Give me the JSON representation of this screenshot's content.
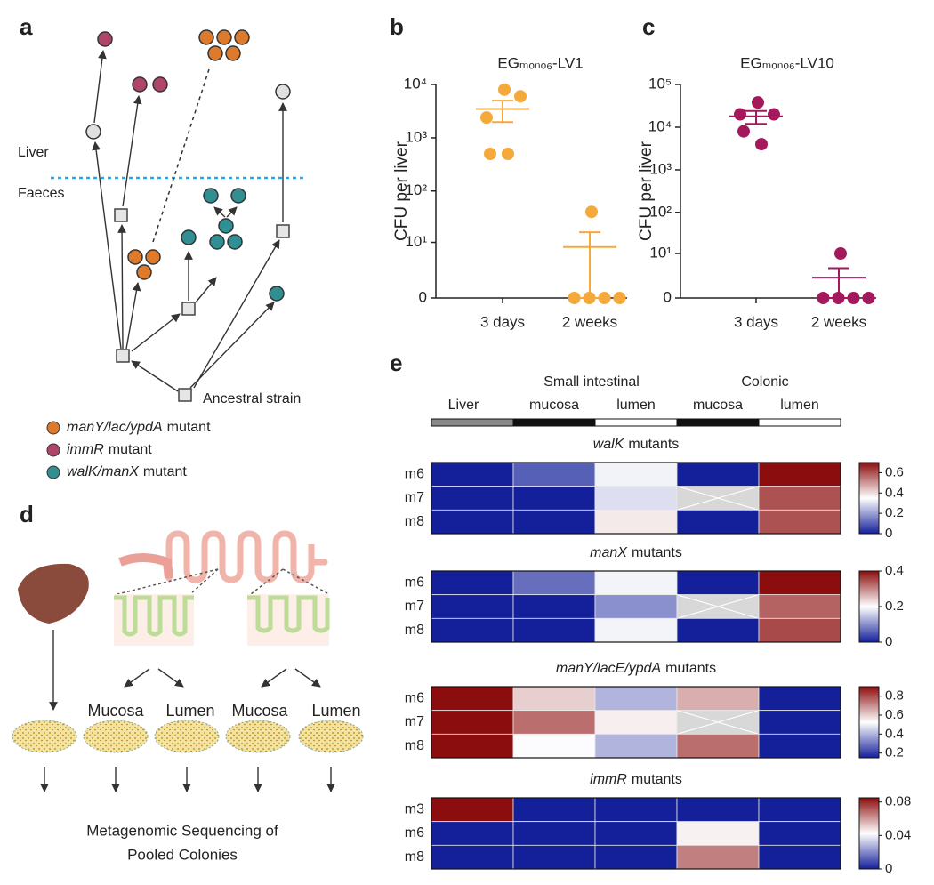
{
  "panel_labels": [
    "a",
    "b",
    "c",
    "d",
    "e"
  ],
  "panel_a": {
    "labels": {
      "liver": "Liver",
      "faeces": "Faeces",
      "ancestral": "Ancestral strain"
    },
    "legend": [
      {
        "gene": "manY/lac/ypdA",
        "label": "mutant",
        "color": "#de7a2c"
      },
      {
        "gene": "immR",
        "label": "mutant",
        "color": "#b0456a"
      },
      {
        "gene": "walK/manX",
        "label": "mutant",
        "color": "#2f8f92"
      }
    ]
  },
  "panel_d": {
    "labels": [
      "Mucosa",
      "Lumen",
      "Mucosa",
      "Lumen"
    ],
    "caption": [
      "Metagenomic Sequencing of",
      "Pooled Colonies"
    ]
  },
  "panel_e": {
    "column_groups": [
      "Small intestinal",
      "Colonic"
    ],
    "columns": [
      "Liver",
      "mucosa",
      "lumen",
      "mucosa",
      "lumen"
    ]
  },
  "chart_data": [
    {
      "type": "scatter",
      "title": "EGₘₒₙₒ₆-LV1",
      "ylabel": "CFU per liver",
      "categories": [
        "3 days",
        "2 weeks"
      ],
      "yscale": "symlog",
      "ylim": [
        0,
        10000
      ],
      "yticks": [
        0,
        {
          "value": 10,
          "label": "10¹"
        },
        {
          "value": 100,
          "label": "10²"
        },
        {
          "value": 1000,
          "label": "10³"
        },
        {
          "value": 10000,
          "label": "10⁴"
        }
      ],
      "color": "#f5a93a",
      "values": [
        [
          8000,
          6000,
          2400,
          500,
          500
        ],
        [
          40,
          0,
          0,
          0,
          0
        ]
      ],
      "mean": [
        3480,
        8
      ],
      "sem": [
        1500,
        8
      ]
    },
    {
      "type": "scatter",
      "title": "EGₘₒₙₒ₆-LV10",
      "ylabel": "CFU per liver",
      "categories": [
        "3 days",
        "2 weeks"
      ],
      "yscale": "symlog",
      "ylim": [
        0,
        100000
      ],
      "yticks": [
        0,
        {
          "value": 10,
          "label": "10¹"
        },
        {
          "value": 100,
          "label": "10²"
        },
        {
          "value": 1000,
          "label": "10³"
        },
        {
          "value": 10000,
          "label": "10⁴"
        },
        {
          "value": 100000,
          "label": "10⁵"
        }
      ],
      "color": "#a3195b",
      "values": [
        [
          38000,
          20000,
          20000,
          8000,
          4000
        ],
        [
          10,
          0,
          0,
          0,
          0
        ]
      ],
      "mean": [
        18000,
        2
      ],
      "sem": [
        6000,
        2
      ]
    },
    {
      "type": "heatmap",
      "gene": "walK",
      "title": "mutants",
      "rows": [
        "m6",
        "m7",
        "m8"
      ],
      "values": [
        [
          0,
          0.1,
          0.33,
          0,
          0.7
        ],
        [
          0,
          0,
          0.3,
          null,
          0.6
        ],
        [
          0,
          0,
          0.38,
          0,
          0.6
        ]
      ],
      "clim": [
        0,
        0.7
      ],
      "cticks": [
        0,
        0.2,
        0.4,
        0.6
      ],
      "colors": [
        "#14209a",
        "#ffffff",
        "#8c0d0d"
      ],
      "missing_color": "#d8d8d8"
    },
    {
      "type": "heatmap",
      "gene": "manX",
      "title": "mutants",
      "rows": [
        "m6",
        "m7",
        "m8"
      ],
      "values": [
        [
          0,
          0.07,
          0.19,
          0,
          0.4
        ],
        [
          0,
          0,
          0.1,
          null,
          0.33
        ],
        [
          0,
          0,
          0.19,
          0,
          0.35
        ]
      ],
      "clim": [
        0,
        0.4
      ],
      "cticks": [
        0,
        0.2,
        0.4
      ],
      "colors": [
        "#14209a",
        "#ffffff",
        "#8c0d0d"
      ],
      "missing_color": "#d8d8d8"
    },
    {
      "type": "heatmap",
      "gene": "manY/lacE/ypdA",
      "title": "mutants",
      "rows": [
        "m6",
        "m7",
        "m8"
      ],
      "values": [
        [
          0.9,
          0.6,
          0.4,
          0.65,
          0.15
        ],
        [
          0.9,
          0.75,
          0.55,
          null,
          0.15
        ],
        [
          0.9,
          0.52,
          0.4,
          0.75,
          0.15
        ]
      ],
      "clim": [
        0.15,
        0.9
      ],
      "cticks": [
        0.2,
        0.4,
        0.6,
        0.8
      ],
      "colors": [
        "#14209a",
        "#ffffff",
        "#8c0d0d"
      ],
      "missing_color": "#d8d8d8"
    },
    {
      "type": "heatmap",
      "gene": "immR",
      "title": "mutants",
      "rows": [
        "m3",
        "m6",
        "m8"
      ],
      "values": [
        [
          0.085,
          0,
          0,
          0,
          0
        ],
        [
          0,
          0,
          0,
          0.045,
          0
        ],
        [
          0,
          0,
          0,
          0.065,
          0
        ]
      ],
      "clim": [
        0,
        0.085
      ],
      "cticks": [
        0,
        0.04,
        0.08
      ],
      "colors": [
        "#14209a",
        "#ffffff",
        "#8c0d0d"
      ],
      "missing_color": "#d8d8d8"
    }
  ]
}
